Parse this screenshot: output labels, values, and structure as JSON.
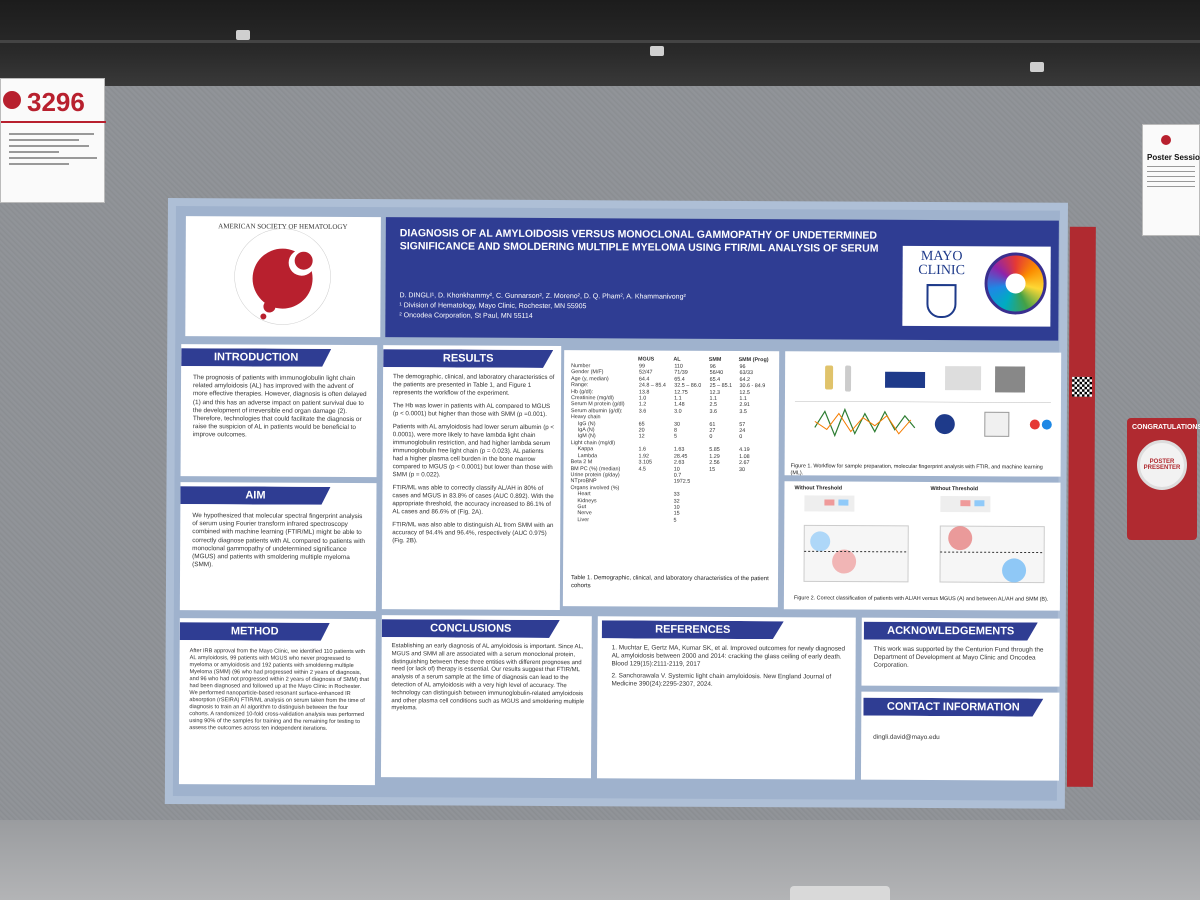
{
  "sign_left": {
    "number": "3296"
  },
  "sign_right": {
    "title": "Poster Session"
  },
  "badge": {
    "text": "CONGRATULATIONS",
    "pin": "POSTER PRESENTER"
  },
  "poster": {
    "title": "Diagnosis of AL Amyloidosis Versus Monoclonal Gammopathy of Undetermined Significance and Smoldering Multiple Myeloma Using FTIR/ML Analysis of Serum",
    "authors": "D. DINGLI¹, D. Khonkhammy², C. Gunnarson², Z. Moreno², D. Q. Pham², A. Khammanivong²",
    "affiliation_1": "¹ Division of Hematology, Mayo Clinic, Rochester, MN 55905",
    "affiliation_2": "² Oncodea Corporation, St Paul, MN 55114",
    "logo_left": "AMERICAN SOCIETY OF HEMATOLOGY",
    "logo_right": "MAYO CLINIC",
    "sections": {
      "introduction": {
        "heading": "INTRODUCTION",
        "text": "The prognosis of patients with immunoglobulin light chain related amyloidosis (AL) has improved with the advent of more effective therapies. However, diagnosis is often delayed (1) and this has an adverse impact on patient survival due to the development of irreversible end organ damage (2). Therefore, technologies that could facilitate the diagnosis or raise the suspicion of AL in patients would be beneficial to improve outcomes."
      },
      "aim": {
        "heading": "AIM",
        "text": "We hypothesized that molecular spectral fingerprint analysis of serum using Fourier transform infrared spectroscopy combined with machine learning (FTIR/ML) might be able to correctly diagnose patients with AL compared to patients with monoclonal gammopathy of undetermined significance (MGUS) and patients with smoldering multiple myeloma (SMM)."
      },
      "method": {
        "heading": "METHOD",
        "text": "After IRB approval from the Mayo Clinic, we identified 110 patients with AL amyloidosis, 99 patients with MGUS who never progressed to myeloma or amyloidosis and 192 patients with smoldering multiple Myeloma (SMM) (96 who had progressed within 2 years of diagnosis, and 96 who had not progressed within 2 years of diagnosis of SMM) that had been diagnosed and followed up at the Mayo Clinic in Rochester. We performed nanoparticle-based resonant surface-enhanced IR absorption (rSEIRA) FTIR/ML analysis on serum taken from the time of diagnosis to train an AI algorithm to distinguish between the four cohorts. A randomized 10-fold cross-validation analysis was performed using 90% of the samples for training and the remaining for testing to assess the outcomes across ten independent iterations."
      },
      "results": {
        "heading": "RESULTS",
        "p1": "The demographic, clinical, and laboratory characteristics of the patients are presented in Table 1, and Figure 1 represents the workflow of the experiment.",
        "p2": "The Hb was lower in patients with AL compared to MGUS (p < 0.0001) but higher than those with SMM (p =0.001).",
        "p3": "Patients with AL amyloidosis had lower serum albumin (p < 0.0001), were more likely to have lambda light chain immunoglobulin restriction, and had higher lambda serum immunoglobulin free light chain (p = 0.023). AL patients had a higher plasma cell burden in the bone marrow compared to MGUS (p < 0.0001) but lower than those with SMM (p = 0.022).",
        "p4": "FTIR/ML was able to correctly classify AL/AH in 80% of cases and MGUS in 83.8% of cases (AUC 0.892). With the appropriate threshold, the accuracy increased to 86.1% of AL cases and 86.6% of (Fig. 2A).",
        "p5": "FTIR/ML was also able to distinguish AL from SMM with an accuracy of 94.4% and 96.4%, respectively (AUC 0.975) (Fig. 2B)."
      },
      "conclusions": {
        "heading": "CONCLUSIONS",
        "text": "Establishing an early diagnosis of AL amyloidosis is important. Since AL, MGUS and SMM all are associated with a serum monoclonal protein, distinguishing between these three entities with different prognoses and need (or lack of) therapy is essential. Our results suggest that FTIR/ML analysis of a serum sample at the time of diagnosis can lead to the detection of AL amyloidosis with a very high level of accuracy. The technology can distinguish between immunoglobulin-related amyloidosis and other plasma cell conditions such as MGUS and smoldering multiple myeloma."
      },
      "references": {
        "heading": "REFERENCES",
        "r1": "1. Muchtar E, Gertz MA, Kumar SK, et al. Improved outcomes for newly diagnosed AL amyloidosis between 2000 and 2014: cracking the glass ceiling of early death. Blood 129(15):2111-2119, 2017",
        "r2": "2. Sanchorawala V. Systemic light chain amyloidosis. New England Journal of Medicine 390(24):2295-2307, 2024."
      },
      "acknowledgements": {
        "heading": "ACKNOWLEDGEMENTS",
        "text": "This work was supported by the Centurion Fund through the Department of Development at Mayo Clinic and Oncodea Corporation."
      },
      "contact": {
        "heading": "CONTACT INFORMATION",
        "text": "dingli.david@mayo.edu"
      }
    },
    "table": {
      "headers": [
        "",
        "MGUS",
        "AL",
        "SMM",
        "SMM (Prog)"
      ],
      "rows": [
        [
          "Number",
          "99",
          "110",
          "96",
          "96"
        ],
        [
          "Gender (M/F)",
          "52/47",
          "71/39",
          "56/40",
          "63/33"
        ],
        [
          "Age (y, median)",
          "64.4",
          "65.4",
          "65.4",
          "64.2"
        ],
        [
          "Range:",
          "24.8 – 85.4",
          "32.5 – 86.0",
          "25 – 85.1",
          "30.6 - 84.9"
        ],
        [
          "Hb (g/dl):",
          "13.8",
          "12.75",
          "12.3",
          "12.5"
        ],
        [
          "Creatinine (mg/dl)",
          "1.0",
          "1.1",
          "1.1",
          "1.1"
        ],
        [
          "Serum M protein (g/dl)",
          "1.2",
          "1.48",
          "2.5",
          "2.91"
        ],
        [
          "Serum albumin (g/dl):",
          "3.6",
          "3.0",
          "3.6",
          "3.5"
        ],
        [
          "Heavy chain",
          "",
          "",
          "",
          ""
        ],
        [
          "IgG (N)",
          "65",
          "30",
          "61",
          "57"
        ],
        [
          "IgA (N)",
          "20",
          "8",
          "27",
          "24"
        ],
        [
          "IgM (N)",
          "12",
          "5",
          "0",
          "0"
        ],
        [
          "Light chain (mg/dl)",
          "",
          "",
          "",
          ""
        ],
        [
          "Kappa",
          "1.6",
          "1.63",
          "5.85",
          "4.19"
        ],
        [
          "Lambda",
          "1.92",
          "28.45",
          "1.29",
          "1.08"
        ],
        [
          "Beta 2 M",
          "3.105",
          "2.63",
          "2.56",
          "2.67"
        ],
        [
          "BM PC (%) (median)",
          "4.5",
          "10",
          "15",
          "30"
        ],
        [
          "Urine protein (g/day)",
          "",
          "0.7",
          "",
          ""
        ],
        [
          "NTproBNP",
          "",
          "1972.5",
          "",
          ""
        ],
        [
          "Organs involved (%)",
          "",
          "",
          "",
          ""
        ],
        [
          "Heart",
          "",
          "33",
          "",
          ""
        ],
        [
          "Kidneys",
          "",
          "32",
          "",
          ""
        ],
        [
          "Gut",
          "",
          "10",
          "",
          ""
        ],
        [
          "Nerve",
          "",
          "15",
          "",
          ""
        ],
        [
          "Liver",
          "",
          "5",
          "",
          ""
        ]
      ],
      "caption": "Table 1. Demographic, clinical, and laboratory characteristics of the patient cohorts"
    },
    "figure1_caption": "Figure 1. Workflow for sample preparation, molecular fingerprint analysis with FTIR, and machine learning (ML).",
    "figure2_caption": "Figure 2. Correct classification of patients with AL/AH versus MGUS (A) and between AL/AH and SMM (B).",
    "figure2_a_label": "Without Threshold",
    "figure2_b_label": "Without Threshold"
  }
}
